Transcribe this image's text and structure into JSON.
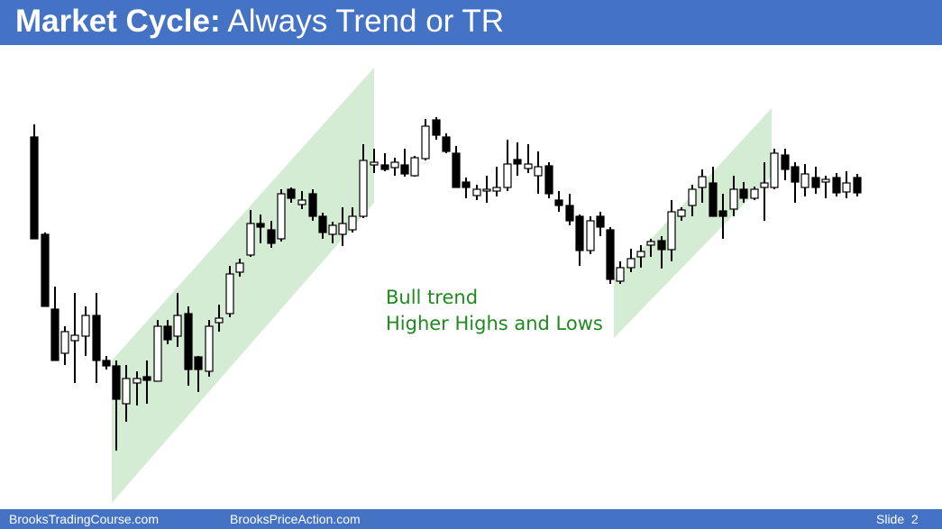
{
  "slide": {
    "title_bold": "Market Cycle:",
    "title_rest": " Always Trend or TR",
    "annotation": [
      "Bull trend",
      "Higher Highs and Lows"
    ],
    "footer": {
      "site1": "BrooksTradingCourse.com",
      "site2": "BrooksPriceAction.com",
      "slide_label": "Slide",
      "slide_number": "2"
    }
  },
  "colors": {
    "header": "#4472c4",
    "channel_fill": "#d5ecd4",
    "annotation_text": "#1f8a1f",
    "bear_bar": "#000000",
    "bull_bar": "#ffffff"
  }
}
